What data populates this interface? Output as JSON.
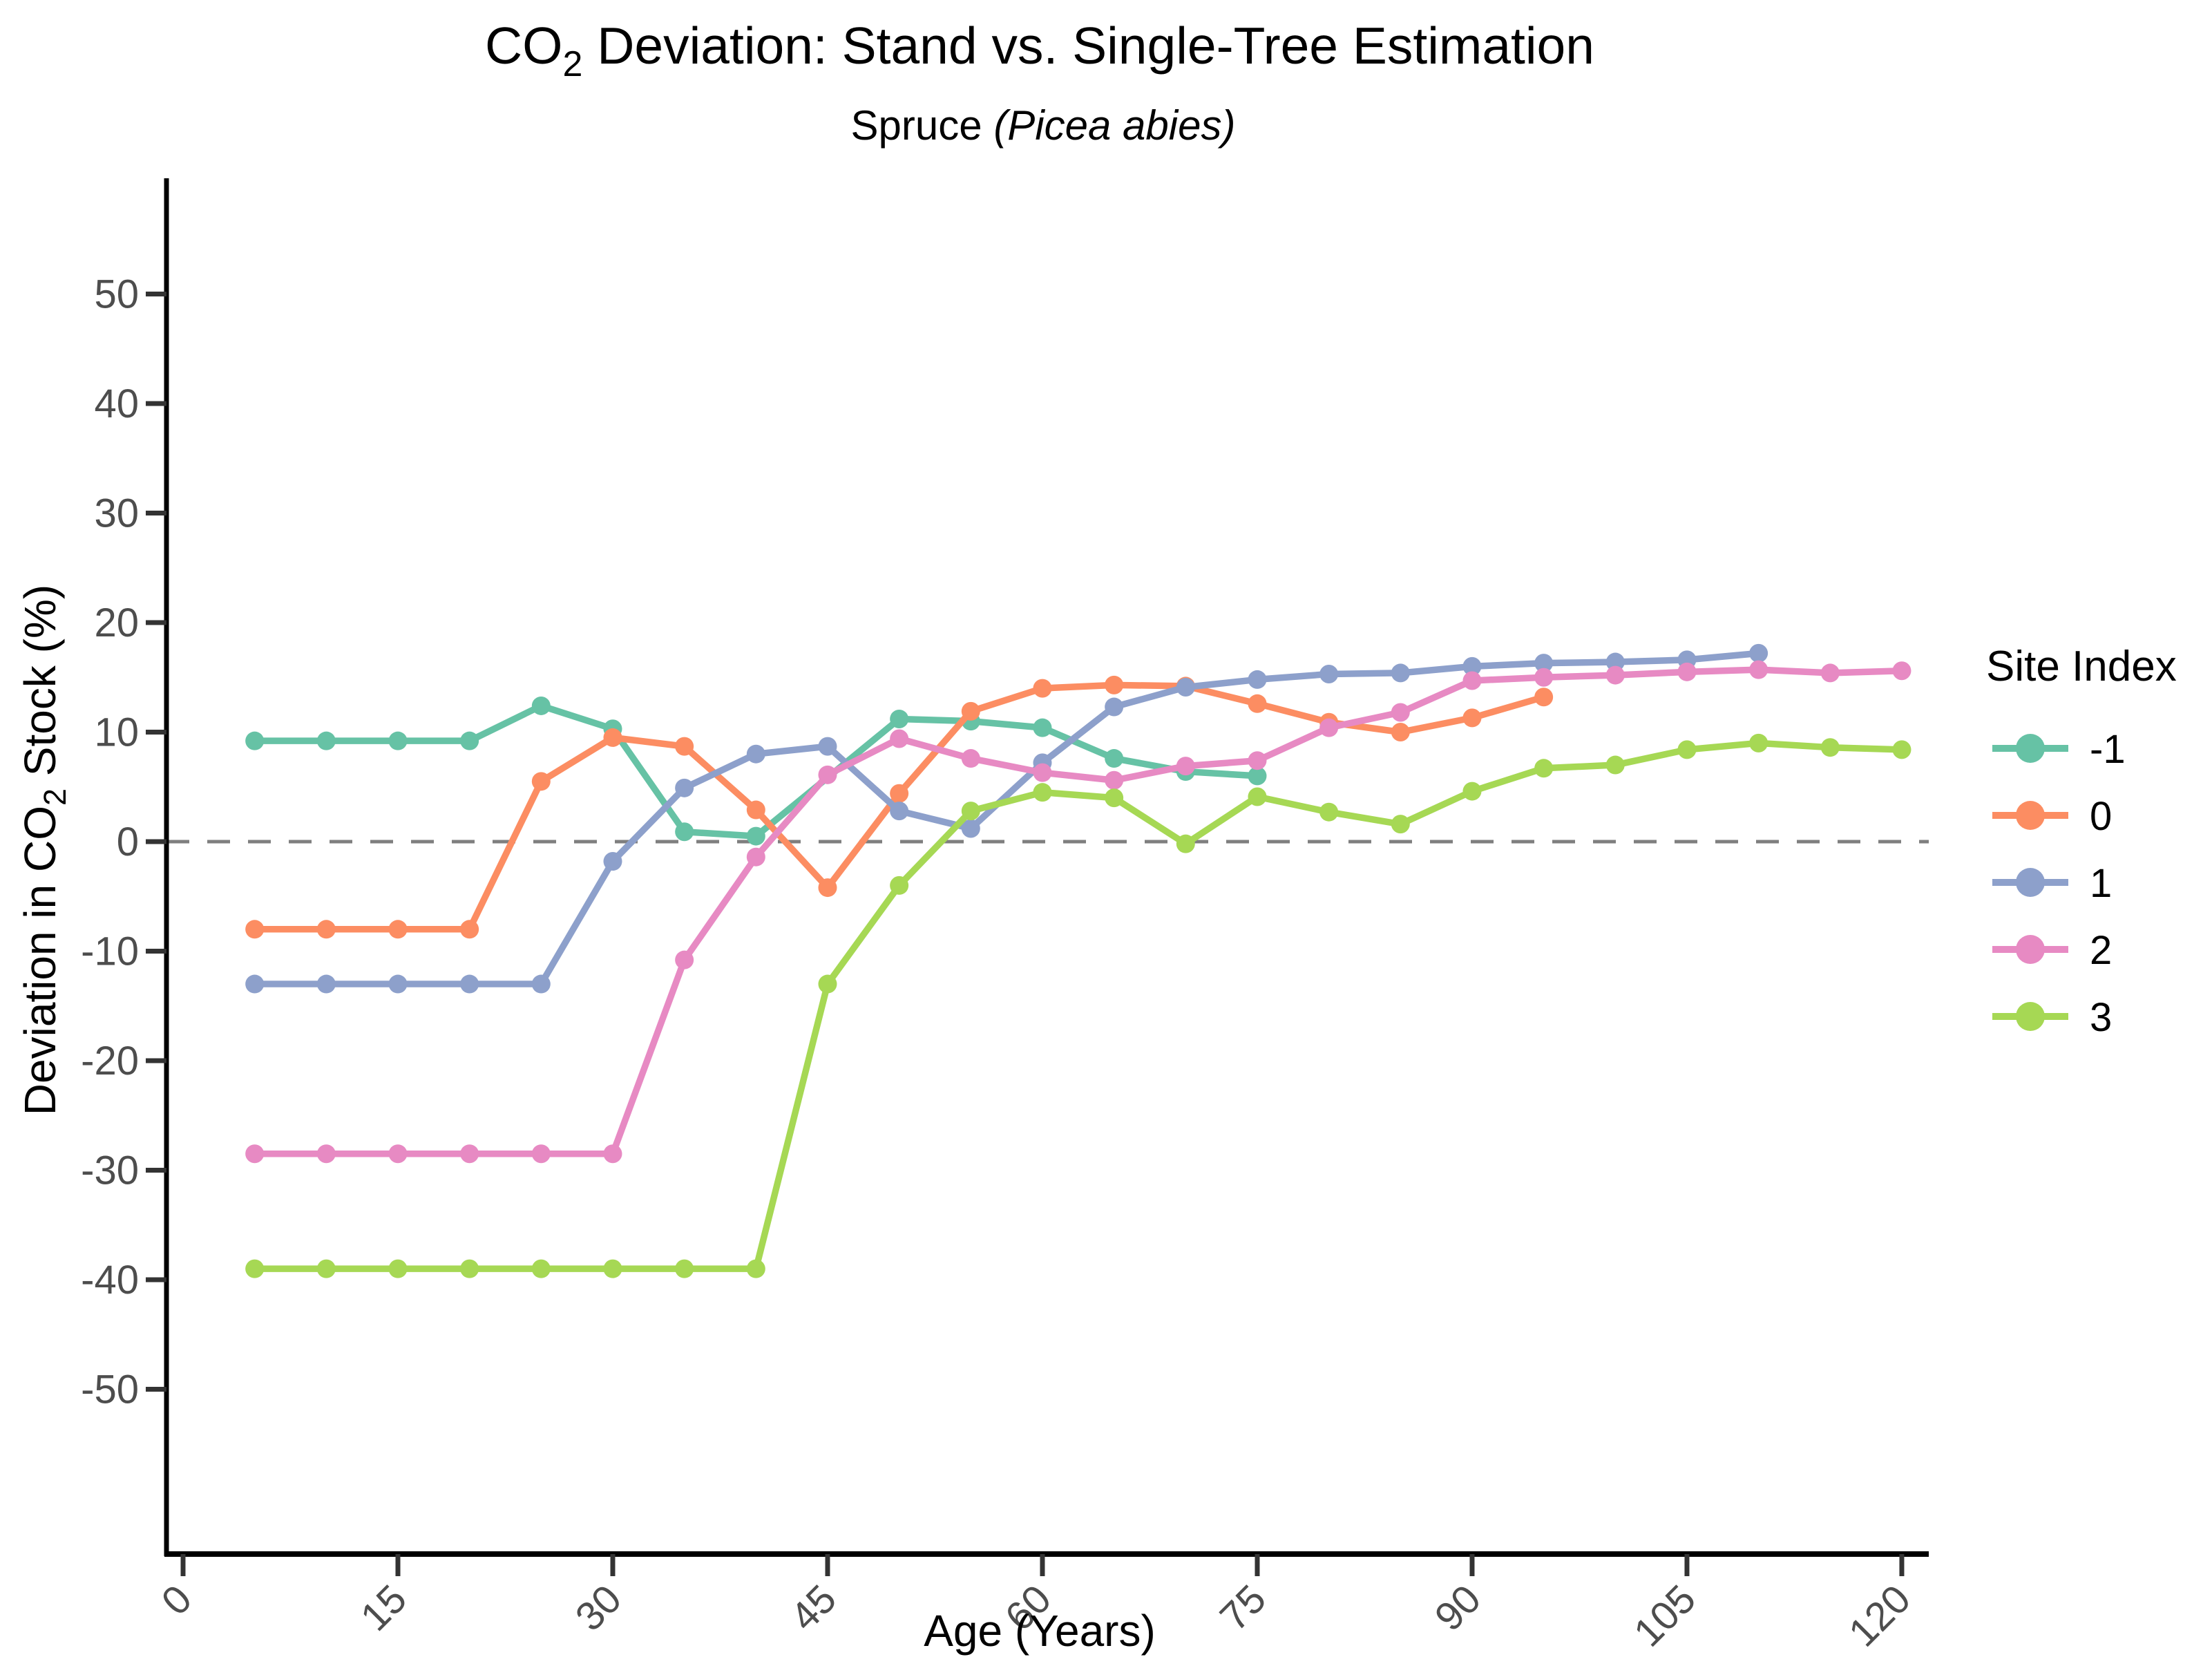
{
  "title": {
    "pre_sub": "CO",
    "sub": "2",
    "post_sub": " Deviation: Stand vs. Single-Tree Estimation"
  },
  "subtitle": {
    "prefix": "Spruce ",
    "italic": "(Picea abies)",
    "suffix": ""
  },
  "axes": {
    "x": {
      "label": "Age (Years)",
      "ticks": [
        0,
        15,
        30,
        45,
        60,
        75,
        90,
        105,
        120
      ]
    },
    "y": {
      "label_pre_sub": "Deviation in CO",
      "label_sub": "2",
      "label_post_sub": " Stock (%)",
      "ticks": [
        50,
        40,
        30,
        20,
        10,
        0,
        -10,
        -20,
        -30,
        -40,
        -50
      ]
    }
  },
  "legend": {
    "title": "Site Index",
    "entries": [
      {
        "label": "-1",
        "color": "#66c2a5"
      },
      {
        "label": "0",
        "color": "#fc8d62"
      },
      {
        "label": "1",
        "color": "#8da0cb"
      },
      {
        "label": "2",
        "color": "#e78ac3"
      },
      {
        "label": "3",
        "color": "#a6d854"
      }
    ]
  },
  "colors": {
    "axis": "#000000",
    "tick": "#333333",
    "tick_label": "#4d4d4d",
    "zero_line": "#7f7f7f"
  },
  "chart_data": {
    "type": "line",
    "title": "CO2 Deviation: Stand vs. Single-Tree Estimation",
    "subtitle": "Spruce (Picea abies)",
    "xlabel": "Age (Years)",
    "ylabel": "Deviation in CO2 Stock (%)",
    "xlim": [
      -2.5,
      122
    ],
    "ylim": [
      -65,
      60
    ],
    "grid": false,
    "zero_reference_line": 0,
    "legend_position": "right",
    "legend_title": "Site Index",
    "series": [
      {
        "name": "-1",
        "color": "#66c2a5",
        "x": [
          5,
          10,
          15,
          20,
          25,
          30,
          35,
          40,
          50,
          55,
          60,
          65,
          70,
          75
        ],
        "y": [
          9.2,
          9.2,
          9.2,
          9.2,
          12.4,
          10.3,
          0.9,
          0.5,
          11.2,
          11.0,
          10.4,
          7.6,
          6.4,
          6.0
        ]
      },
      {
        "name": "0",
        "color": "#fc8d62",
        "x": [
          5,
          10,
          15,
          20,
          25,
          30,
          35,
          40,
          45,
          50,
          55,
          60,
          65,
          70,
          75,
          80,
          85,
          90,
          95
        ],
        "y": [
          -8,
          -8,
          -8,
          -8,
          5.5,
          9.5,
          8.7,
          2.9,
          -4.2,
          4.4,
          11.9,
          14.0,
          14.3,
          14.2,
          12.6,
          10.9,
          10.0,
          11.3,
          13.2
        ]
      },
      {
        "name": "1",
        "color": "#8da0cb",
        "x": [
          5,
          10,
          15,
          20,
          25,
          30,
          35,
          40,
          45,
          50,
          55,
          60,
          65,
          70,
          75,
          80,
          85,
          90,
          95,
          100,
          105,
          110
        ],
        "y": [
          -13,
          -13,
          -13,
          -13,
          -13,
          -1.8,
          4.9,
          8.0,
          8.7,
          2.8,
          1.2,
          7.2,
          12.3,
          14.1,
          14.8,
          15.3,
          15.4,
          16.0,
          16.3,
          16.4,
          16.6,
          17.2
        ]
      },
      {
        "name": "2",
        "color": "#e78ac3",
        "x": [
          5,
          10,
          15,
          20,
          25,
          30,
          35,
          40,
          45,
          50,
          55,
          60,
          65,
          70,
          75,
          80,
          85,
          90,
          95,
          100,
          105,
          110,
          115,
          120
        ],
        "y": [
          -28.5,
          -28.5,
          -28.5,
          -28.5,
          -28.5,
          -28.5,
          -10.8,
          -1.4,
          6.1,
          9.4,
          7.6,
          6.3,
          5.6,
          6.9,
          7.4,
          10.4,
          11.8,
          14.7,
          15.0,
          15.2,
          15.5,
          15.7,
          15.4,
          15.6
        ]
      },
      {
        "name": "3",
        "color": "#a6d854",
        "x": [
          5,
          10,
          15,
          20,
          25,
          30,
          35,
          40,
          45,
          50,
          55,
          60,
          65,
          70,
          75,
          80,
          85,
          90,
          95,
          100,
          105,
          110,
          115,
          120
        ],
        "y": [
          -39,
          -39,
          -39,
          -39,
          -39,
          -39,
          -39,
          -39,
          -13,
          -4.0,
          2.8,
          4.5,
          4.0,
          -0.2,
          4.1,
          2.7,
          1.6,
          4.6,
          6.7,
          7.0,
          8.4,
          9.0,
          8.6,
          8.4
        ]
      }
    ]
  }
}
